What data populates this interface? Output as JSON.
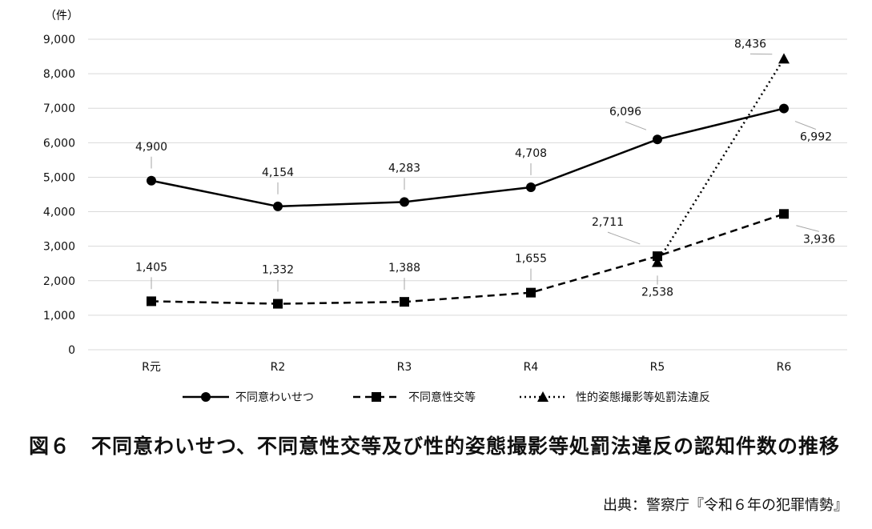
{
  "chart_data": {
    "type": "line",
    "y_unit_label": "（件）",
    "categories": [
      "R元",
      "R2",
      "R3",
      "R4",
      "R5",
      "R6"
    ],
    "ylim": [
      0,
      9000
    ],
    "yticks": [
      "0",
      "1,000",
      "2,000",
      "3,000",
      "4,000",
      "5,000",
      "6,000",
      "7,000",
      "8,000",
      "9,000"
    ],
    "grid": true,
    "legend_position": "bottom",
    "series": [
      {
        "name": "不同意わいせつ",
        "values": [
          4900,
          4154,
          4283,
          4708,
          6096,
          6992
        ],
        "labels": [
          "4,900",
          "4,154",
          "4,283",
          "4,708",
          "6,096",
          "6,992"
        ],
        "line_style": "solid",
        "marker": "circle"
      },
      {
        "name": "不同意性交等",
        "values": [
          1405,
          1332,
          1388,
          1655,
          2711,
          3936
        ],
        "labels": [
          "1,405",
          "1,332",
          "1,388",
          "1,655",
          "2,711",
          "3,936"
        ],
        "line_style": "dashed",
        "marker": "square"
      },
      {
        "name": "性的姿態撮影等処罰法違反",
        "x": [
          "R5",
          "R6"
        ],
        "values": [
          2538,
          8436
        ],
        "labels": [
          "2,538",
          "8,436"
        ],
        "line_style": "dotted",
        "marker": "triangle"
      }
    ],
    "colors": {
      "line": "#000000",
      "grid": "#d9d9d9",
      "label_leader": "#a6a6a6"
    }
  },
  "caption": "図６　不同意わいせつ、不同意性交等及び性的姿態撮影等処罰法違反の認知件数の推移",
  "source": "出典：警察庁『令和６年の犯罪情勢』"
}
